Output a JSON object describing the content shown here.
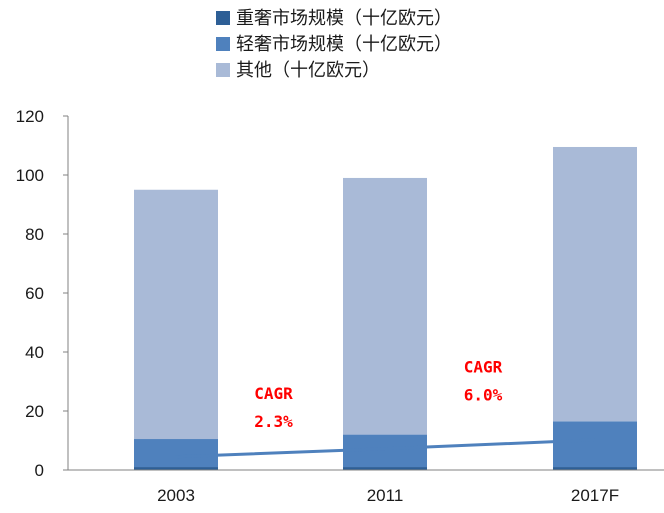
{
  "chart_data": {
    "type": "bar",
    "stacked": true,
    "title": "",
    "xlabel": "",
    "ylabel": "",
    "categories": [
      "2003",
      "2011",
      "2017F"
    ],
    "ylim": [
      0,
      120
    ],
    "yticks": [
      0,
      20,
      40,
      60,
      80,
      100,
      120
    ],
    "grid": false,
    "legend_position": "top",
    "series": [
      {
        "name": "重奢市场规模（十亿欧元）",
        "values": [
          1.0,
          1.0,
          1.0
        ],
        "color": "#2e5f96"
      },
      {
        "name": "轻奢市场规模（十亿欧元）",
        "values": [
          9.5,
          11.0,
          15.5
        ],
        "color": "#4f81bd"
      },
      {
        "name": "其他（十亿欧元）",
        "values": [
          84.5,
          87.0,
          93.0
        ],
        "color": "#a9bad7"
      }
    ],
    "trend_line": {
      "color": "#4f81bd",
      "points": [
        {
          "category": "2003",
          "value": 4.5
        },
        {
          "category": "2011",
          "value": 7.2
        },
        {
          "category": "2017F",
          "value": 10.2
        }
      ]
    },
    "annotations": [
      {
        "id": "cagr-1",
        "line1": "CAGR",
        "line2": "2.3%",
        "color": "#ff0000",
        "between": [
          "2003",
          "2011"
        ],
        "value": 21
      },
      {
        "id": "cagr-2",
        "line1": "CAGR",
        "line2": "6.0%",
        "color": "#ff0000",
        "between": [
          "2011",
          "2017F"
        ],
        "value": 30
      }
    ]
  }
}
